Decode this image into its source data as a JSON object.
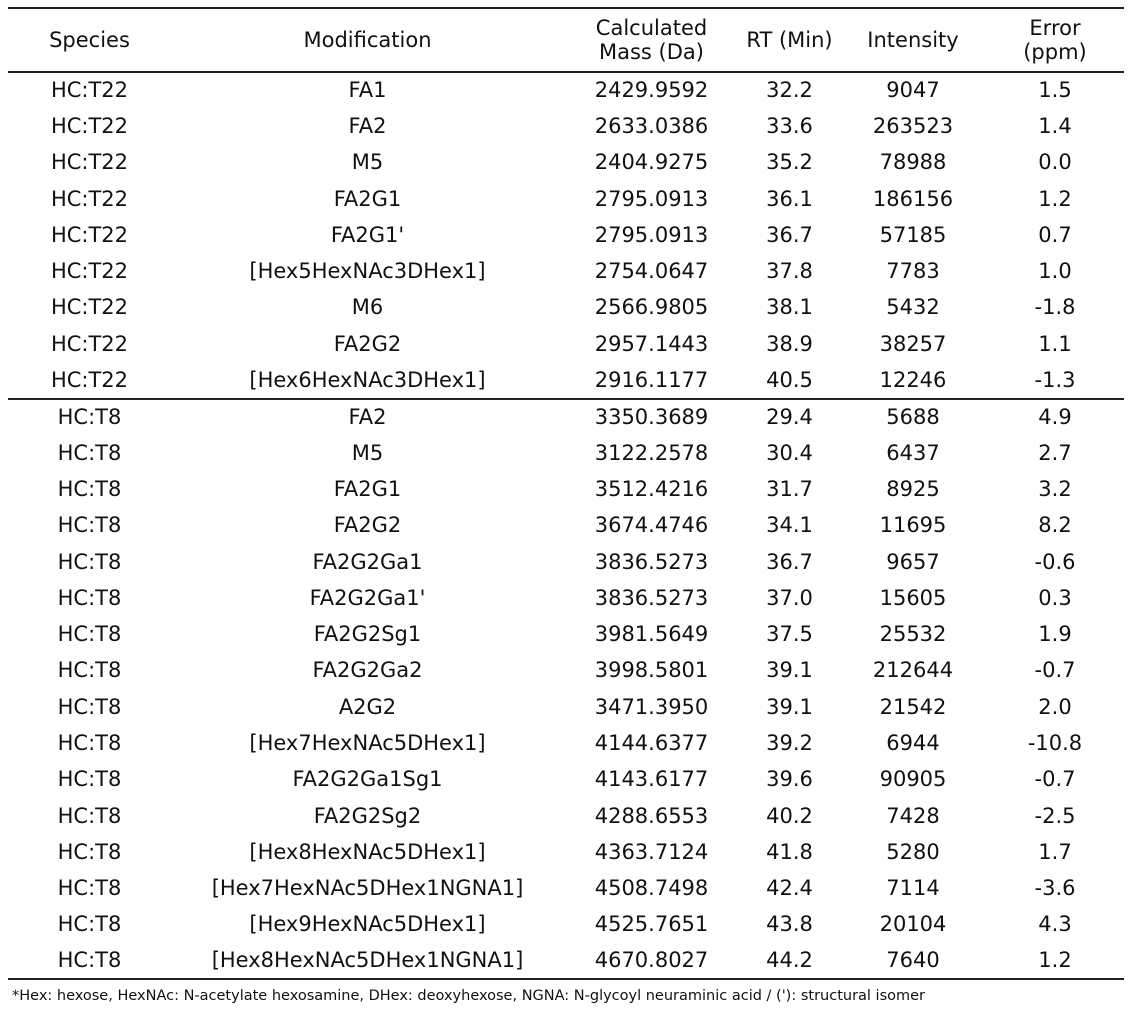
{
  "headers": {
    "species": "Species",
    "modification": "Modification",
    "mass_line1": "Calculated",
    "mass_line2": "Mass (Da)",
    "rt": "RT (Min)",
    "intensity": "Intensity",
    "error_line1": "Error",
    "error_line2": "(ppm)"
  },
  "groups": [
    {
      "rows": [
        {
          "species": "HC:T22",
          "modification": "FA1",
          "mass": "2429.9592",
          "rt": "32.2",
          "intensity": "9047",
          "error": "1.5"
        },
        {
          "species": "HC:T22",
          "modification": "FA2",
          "mass": "2633.0386",
          "rt": "33.6",
          "intensity": "263523",
          "error": "1.4"
        },
        {
          "species": "HC:T22",
          "modification": "M5",
          "mass": "2404.9275",
          "rt": "35.2",
          "intensity": "78988",
          "error": "0.0"
        },
        {
          "species": "HC:T22",
          "modification": "FA2G1",
          "mass": "2795.0913",
          "rt": "36.1",
          "intensity": "186156",
          "error": "1.2"
        },
        {
          "species": "HC:T22",
          "modification": "FA2G1'",
          "mass": "2795.0913",
          "rt": "36.7",
          "intensity": "57185",
          "error": "0.7"
        },
        {
          "species": "HC:T22",
          "modification": "[Hex5HexNAc3DHex1]",
          "mass": "2754.0647",
          "rt": "37.8",
          "intensity": "7783",
          "error": "1.0"
        },
        {
          "species": "HC:T22",
          "modification": "M6",
          "mass": "2566.9805",
          "rt": "38.1",
          "intensity": "5432",
          "error": "-1.8"
        },
        {
          "species": "HC:T22",
          "modification": "FA2G2",
          "mass": "2957.1443",
          "rt": "38.9",
          "intensity": "38257",
          "error": "1.1"
        },
        {
          "species": "HC:T22",
          "modification": "[Hex6HexNAc3DHex1]",
          "mass": "2916.1177",
          "rt": "40.5",
          "intensity": "12246",
          "error": "-1.3"
        }
      ]
    },
    {
      "rows": [
        {
          "species": "HC:T8",
          "modification": "FA2",
          "mass": "3350.3689",
          "rt": "29.4",
          "intensity": "5688",
          "error": "4.9"
        },
        {
          "species": "HC:T8",
          "modification": "M5",
          "mass": "3122.2578",
          "rt": "30.4",
          "intensity": "6437",
          "error": "2.7"
        },
        {
          "species": "HC:T8",
          "modification": "FA2G1",
          "mass": "3512.4216",
          "rt": "31.7",
          "intensity": "8925",
          "error": "3.2"
        },
        {
          "species": "HC:T8",
          "modification": "FA2G2",
          "mass": "3674.4746",
          "rt": "34.1",
          "intensity": "11695",
          "error": "8.2"
        },
        {
          "species": "HC:T8",
          "modification": "FA2G2Ga1",
          "mass": "3836.5273",
          "rt": "36.7",
          "intensity": "9657",
          "error": "-0.6"
        },
        {
          "species": "HC:T8",
          "modification": "FA2G2Ga1'",
          "mass": "3836.5273",
          "rt": "37.0",
          "intensity": "15605",
          "error": "0.3"
        },
        {
          "species": "HC:T8",
          "modification": "FA2G2Sg1",
          "mass": "3981.5649",
          "rt": "37.5",
          "intensity": "25532",
          "error": "1.9"
        },
        {
          "species": "HC:T8",
          "modification": "FA2G2Ga2",
          "mass": "3998.5801",
          "rt": "39.1",
          "intensity": "212644",
          "error": "-0.7"
        },
        {
          "species": "HC:T8",
          "modification": "A2G2",
          "mass": "3471.3950",
          "rt": "39.1",
          "intensity": "21542",
          "error": "2.0"
        },
        {
          "species": "HC:T8",
          "modification": "[Hex7HexNAc5DHex1]",
          "mass": "4144.6377",
          "rt": "39.2",
          "intensity": "6944",
          "error": "-10.8"
        },
        {
          "species": "HC:T8",
          "modification": "FA2G2Ga1Sg1",
          "mass": "4143.6177",
          "rt": "39.6",
          "intensity": "90905",
          "error": "-0.7"
        },
        {
          "species": "HC:T8",
          "modification": "FA2G2Sg2",
          "mass": "4288.6553",
          "rt": "40.2",
          "intensity": "7428",
          "error": "-2.5"
        },
        {
          "species": "HC:T8",
          "modification": "[Hex8HexNAc5DHex1]",
          "mass": "4363.7124",
          "rt": "41.8",
          "intensity": "5280",
          "error": "1.7"
        },
        {
          "species": "HC:T8",
          "modification": "[Hex7HexNAc5DHex1NGNA1]",
          "mass": "4508.7498",
          "rt": "42.4",
          "intensity": "7114",
          "error": "-3.6"
        },
        {
          "species": "HC:T8",
          "modification": "[Hex9HexNAc5DHex1]",
          "mass": "4525.7651",
          "rt": "43.8",
          "intensity": "20104",
          "error": "4.3"
        },
        {
          "species": "HC:T8",
          "modification": "[Hex8HexNAc5DHex1NGNA1]",
          "mass": "4670.8027",
          "rt": "44.2",
          "intensity": "7640",
          "error": "1.2"
        }
      ]
    }
  ],
  "footnote": "*Hex: hexose, HexNAc: N-acetylate hexosamine, DHex: deoxyhexose, NGNA: N-glycoyl neuraminic acid / ('): structural isomer"
}
